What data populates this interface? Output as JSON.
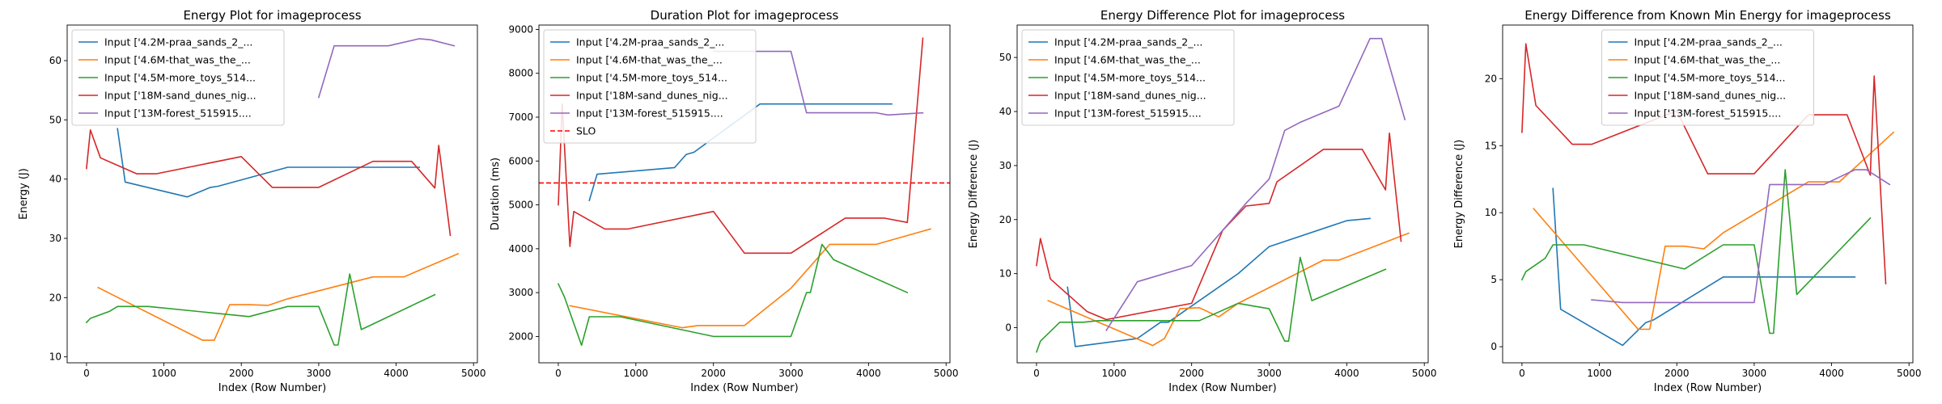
{
  "figure": {
    "background": "#ffffff"
  },
  "chart_data": [
    {
      "type": "line",
      "title": "Energy Plot for imageprocess",
      "xlabel": "Index (Row Number)",
      "ylabel": "Energy (J)",
      "xlim": [
        -250,
        5050
      ],
      "ylim": [
        9,
        66
      ],
      "xticks": [
        0,
        1000,
        2000,
        3000,
        4000,
        5000
      ],
      "yticks": [
        10,
        20,
        30,
        40,
        50,
        60
      ],
      "legend": "top-left",
      "grid": false,
      "series": [
        {
          "name": "Input ['4.2M-praa_sands_2_...",
          "color": "#1f77b4",
          "x": [
            400,
            500,
            1300,
            1600,
            1700,
            2600,
            4300
          ],
          "y": [
            48.5,
            39.5,
            37.0,
            38.6,
            38.8,
            42.0,
            42.0
          ]
        },
        {
          "name": "Input ['4.6M-that_was_the_...",
          "color": "#ff7f0e",
          "x": [
            150,
            1500,
            1650,
            1850,
            2100,
            2350,
            2600,
            3700,
            4100,
            4800
          ],
          "y": [
            21.7,
            12.8,
            12.8,
            18.8,
            18.8,
            18.7,
            19.8,
            23.5,
            23.5,
            27.4
          ]
        },
        {
          "name": "Input ['4.5M-more_toys_514...",
          "color": "#2ca02c",
          "x": [
            0,
            50,
            300,
            400,
            600,
            800,
            2100,
            2600,
            3000,
            3200,
            3250,
            3400,
            3550,
            4500
          ],
          "y": [
            15.8,
            16.5,
            17.7,
            18.5,
            18.5,
            18.5,
            16.8,
            18.5,
            18.5,
            12.0,
            12.0,
            24.0,
            14.6,
            20.5
          ]
        },
        {
          "name": "Input ['18M-sand_dunes_nig...",
          "color": "#d62728",
          "x": [
            0,
            50,
            180,
            650,
            900,
            2000,
            2400,
            3000,
            3700,
            4200,
            4500,
            4550,
            4700
          ],
          "y": [
            41.8,
            48.3,
            43.6,
            40.9,
            40.9,
            43.8,
            38.6,
            38.6,
            43.0,
            43.0,
            38.5,
            45.7,
            30.5
          ]
        },
        {
          "name": "Input ['13M-forest_515915....",
          "color": "#9467bd",
          "x": [
            3000,
            3200,
            3900,
            4300,
            4450,
            4750
          ],
          "y": [
            53.8,
            62.5,
            62.5,
            63.7,
            63.5,
            62.5
          ]
        }
      ]
    },
    {
      "type": "line",
      "title": "Duration Plot for imageprocess",
      "xlabel": "Index (Row Number)",
      "ylabel": "Duration (ms)",
      "xlim": [
        -250,
        5050
      ],
      "ylim": [
        1400,
        9100
      ],
      "xticks": [
        0,
        1000,
        2000,
        3000,
        4000,
        5000
      ],
      "yticks": [
        2000,
        3000,
        4000,
        5000,
        6000,
        7000,
        8000,
        9000
      ],
      "legend": "top-left",
      "grid": false,
      "slo": {
        "name": "SLO",
        "value": 5500,
        "color": "#ff0000"
      },
      "series": [
        {
          "name": "Input ['4.2M-praa_sands_2_...",
          "color": "#1f77b4",
          "x": [
            400,
            500,
            1500,
            1650,
            1750,
            2600,
            3000,
            4300
          ],
          "y": [
            5100,
            5700,
            5850,
            6150,
            6200,
            7300,
            7300,
            7300
          ]
        },
        {
          "name": "Input ['4.6M-that_was_the_...",
          "color": "#ff7f0e",
          "x": [
            150,
            1600,
            1800,
            2100,
            2400,
            3000,
            3500,
            4100,
            4800
          ],
          "y": [
            2700,
            2200,
            2250,
            2250,
            2250,
            3100,
            4100,
            4100,
            4450
          ]
        },
        {
          "name": "Input ['4.5M-more_toys_514...",
          "color": "#2ca02c",
          "x": [
            0,
            80,
            300,
            400,
            800,
            2000,
            3000,
            3200,
            3250,
            3400,
            3550,
            4500
          ],
          "y": [
            3200,
            2900,
            1800,
            2450,
            2450,
            2000,
            2000,
            3000,
            3000,
            4100,
            3750,
            3000
          ]
        },
        {
          "name": "Input ['18M-sand_dunes_nig...",
          "color": "#d62728",
          "x": [
            0,
            50,
            150,
            200,
            600,
            900,
            2000,
            2400,
            3000,
            3700,
            4200,
            4500,
            4700
          ],
          "y": [
            5000,
            7300,
            4050,
            4850,
            4450,
            4450,
            4850,
            3900,
            3900,
            4700,
            4700,
            4600,
            8800
          ]
        },
        {
          "name": "Input ['13M-forest_515915....",
          "color": "#9467bd",
          "x": [
            2000,
            2800,
            3000,
            3200,
            3700,
            4100,
            4250,
            4700
          ],
          "y": [
            8500,
            8500,
            8500,
            7100,
            7100,
            7100,
            7050,
            7100
          ]
        }
      ]
    },
    {
      "type": "line",
      "title": "Energy Difference Plot for imageprocess",
      "xlabel": "Index (Row Number)",
      "ylabel": "Energy Difference (J)",
      "xlim": [
        -250,
        5050
      ],
      "ylim": [
        -6.5,
        56
      ],
      "xticks": [
        0,
        1000,
        2000,
        3000,
        4000,
        5000
      ],
      "yticks": [
        0,
        10,
        20,
        30,
        40,
        50
      ],
      "legend": "top-left",
      "grid": false,
      "series": [
        {
          "name": "Input ['4.2M-praa_sands_2_...",
          "color": "#1f77b4",
          "x": [
            400,
            500,
            1300,
            1600,
            1700,
            2600,
            3000,
            4000,
            4300
          ],
          "y": [
            7.5,
            -3.5,
            -2.0,
            1.0,
            1.0,
            10.0,
            15.0,
            19.8,
            20.2
          ]
        },
        {
          "name": "Input ['4.6M-that_was_the_...",
          "color": "#ff7f0e",
          "x": [
            150,
            1500,
            1650,
            1850,
            2100,
            2350,
            2600,
            3700,
            3900,
            4800
          ],
          "y": [
            5.0,
            -3.3,
            -2.0,
            3.5,
            3.7,
            2.0,
            4.5,
            12.5,
            12.5,
            17.5
          ]
        },
        {
          "name": "Input ['4.5M-more_toys_514...",
          "color": "#2ca02c",
          "x": [
            0,
            50,
            300,
            400,
            600,
            800,
            2100,
            2600,
            2800,
            3000,
            3200,
            3250,
            3400,
            3550,
            4500
          ],
          "y": [
            -4.5,
            -2.5,
            1.0,
            1.0,
            1.0,
            1.3,
            1.3,
            4.5,
            4.0,
            3.5,
            -2.5,
            -2.5,
            13.0,
            5.0,
            10.8
          ]
        },
        {
          "name": "Input ['18M-sand_dunes_nig...",
          "color": "#d62728",
          "x": [
            0,
            50,
            180,
            650,
            900,
            2000,
            2400,
            2700,
            3000,
            3100,
            3700,
            4200,
            4500,
            4550,
            4700
          ],
          "y": [
            11.5,
            16.5,
            9.0,
            3.0,
            1.5,
            4.5,
            18.0,
            22.5,
            23.0,
            27.0,
            33.0,
            33.0,
            25.5,
            36.0,
            16.0
          ]
        },
        {
          "name": "Input ['13M-forest_515915....",
          "color": "#9467bd",
          "x": [
            900,
            1300,
            2000,
            2400,
            2700,
            3000,
            3200,
            3400,
            3900,
            4300,
            4450,
            4750
          ],
          "y": [
            -0.5,
            8.5,
            11.5,
            18.0,
            23.0,
            27.5,
            36.5,
            38.0,
            41.0,
            53.5,
            53.5,
            38.5
          ]
        }
      ]
    },
    {
      "type": "line",
      "title": "Energy Difference from Known Min Energy for imageprocess",
      "xlabel": "Index (Row Number)",
      "ylabel": "Energy Difference (J)",
      "xlim": [
        -250,
        5050
      ],
      "ylim": [
        -1.2,
        24
      ],
      "xticks": [
        0,
        1000,
        2000,
        3000,
        4000,
        5000
      ],
      "yticks": [
        0,
        5,
        10,
        15,
        20
      ],
      "legend": "top-center",
      "grid": false,
      "series": [
        {
          "name": "Input ['4.2M-praa_sands_2_...",
          "color": "#1f77b4",
          "x": [
            400,
            500,
            1300,
            1600,
            1700,
            2600,
            3000,
            4300
          ],
          "y": [
            11.8,
            2.8,
            0.1,
            1.8,
            2.0,
            5.2,
            5.2,
            5.2
          ]
        },
        {
          "name": "Input ['4.6M-that_was_the_...",
          "color": "#ff7f0e",
          "x": [
            150,
            1500,
            1650,
            1850,
            2100,
            2350,
            2600,
            3700,
            4100,
            4800
          ],
          "y": [
            10.3,
            1.3,
            1.3,
            7.5,
            7.5,
            7.3,
            8.5,
            12.3,
            12.3,
            16.0
          ]
        },
        {
          "name": "Input ['4.5M-more_toys_514...",
          "color": "#2ca02c",
          "x": [
            0,
            50,
            300,
            400,
            600,
            800,
            2100,
            2600,
            3000,
            3200,
            3250,
            3400,
            3550,
            4500
          ],
          "y": [
            5.0,
            5.6,
            6.6,
            7.6,
            7.6,
            7.6,
            5.8,
            7.6,
            7.6,
            1.0,
            1.0,
            13.2,
            3.9,
            9.6
          ]
        },
        {
          "name": "Input ['18M-sand_dunes_nig...",
          "color": "#d62728",
          "x": [
            0,
            50,
            180,
            650,
            900,
            2000,
            2400,
            3000,
            3700,
            4200,
            4500,
            4550,
            4700
          ],
          "y": [
            16.0,
            22.6,
            18.0,
            15.1,
            15.1,
            17.6,
            12.9,
            12.9,
            17.3,
            17.3,
            12.8,
            20.2,
            4.7
          ]
        },
        {
          "name": "Input ['13M-forest_515915....",
          "color": "#9467bd",
          "x": [
            900,
            1300,
            2000,
            3000,
            3200,
            3900,
            4300,
            4450,
            4750
          ],
          "y": [
            3.5,
            3.3,
            3.3,
            3.3,
            12.1,
            12.1,
            13.2,
            13.2,
            12.1
          ]
        }
      ]
    }
  ]
}
